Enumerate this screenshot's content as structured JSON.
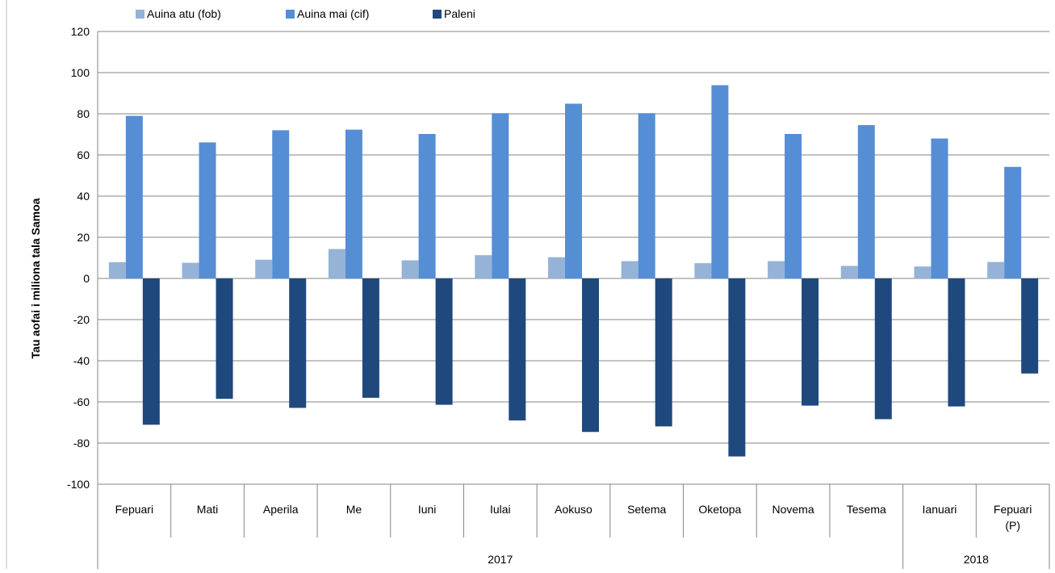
{
  "chart_data": {
    "type": "bar",
    "ylabel": "Tau aofai i miliona tala Samoa",
    "ylim": [
      -100,
      120
    ],
    "yticks": [
      -100,
      -80,
      -60,
      -40,
      -20,
      0,
      20,
      40,
      60,
      80,
      100,
      120
    ],
    "grid": true,
    "legend_position": "top",
    "categories": [
      "Fepuari",
      "Mati",
      "Aperila",
      "Me",
      "Iuni",
      "Iulai",
      "Aokuso",
      "Setema",
      "Oketopa",
      "Novema",
      "Tesema",
      "Ianuari",
      "Fepuari (P)"
    ],
    "category_lines": [
      [
        "Fepuari"
      ],
      [
        "Mati"
      ],
      [
        "Aperila"
      ],
      [
        "Me"
      ],
      [
        "Iuni"
      ],
      [
        "Iulai"
      ],
      [
        "Aokuso"
      ],
      [
        "Setema"
      ],
      [
        "Oketopa"
      ],
      [
        "Novema"
      ],
      [
        "Tesema"
      ],
      [
        "Ianuari"
      ],
      [
        "Fepuari",
        "(P)"
      ]
    ],
    "groups": [
      {
        "label": "2017",
        "count": 11
      },
      {
        "label": "2018",
        "count": 2
      }
    ],
    "series": [
      {
        "name": "Auina atu (fob)",
        "color": "#95B3D7",
        "values": [
          7.9,
          7.6,
          9.1,
          14.3,
          8.8,
          11.3,
          10.3,
          8.4,
          7.4,
          8.4,
          6.1,
          5.8,
          8.0
        ]
      },
      {
        "name": "Auina mai (cif)",
        "color": "#558ED5",
        "values": [
          79.0,
          66.1,
          72.0,
          72.3,
          70.2,
          80.3,
          84.9,
          80.3,
          93.9,
          70.2,
          74.5,
          68.0,
          54.2
        ]
      },
      {
        "name": "Paleni",
        "color": "#1F497D",
        "values": [
          -71.1,
          -58.5,
          -62.9,
          -58.0,
          -61.4,
          -69.0,
          -74.6,
          -71.9,
          -86.5,
          -61.8,
          -68.4,
          -62.2,
          -46.2
        ]
      }
    ]
  }
}
